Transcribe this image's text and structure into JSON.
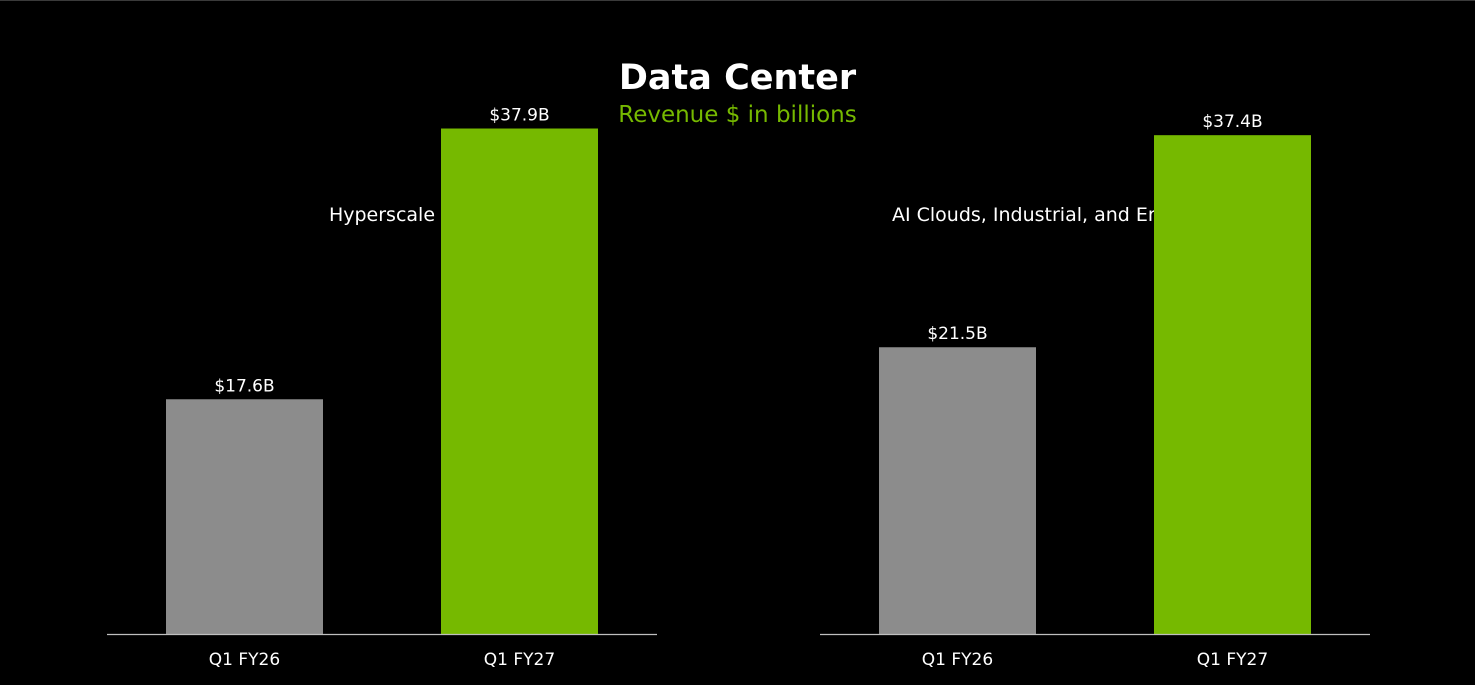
{
  "title": "Data Center",
  "subtitle": "Revenue $ in billions",
  "colors": {
    "background": "#000000",
    "title": "#ffffff",
    "subtitle": "#76b900",
    "prior_bar": "#8c8c8c",
    "current_bar": "#76b900",
    "axis": "#bfbfbf"
  },
  "chart_data": [
    {
      "type": "bar",
      "title": "Hyperscale",
      "categories": [
        "Q1 FY26",
        "Q1 FY27"
      ],
      "values": [
        17.6,
        37.9
      ],
      "data_labels": [
        "$17.6B",
        "$37.9B"
      ],
      "bar_colors": [
        "#8c8c8c",
        "#76b900"
      ],
      "xlabel": "",
      "ylabel": "",
      "ylim": [
        0,
        40
      ],
      "grid": false,
      "legend": "none"
    },
    {
      "type": "bar",
      "title": "AI Clouds, Industrial, and Enterprise (ACIE)",
      "categories": [
        "Q1 FY26",
        "Q1 FY27"
      ],
      "values": [
        21.5,
        37.4
      ],
      "data_labels": [
        "$21.5B",
        "$37.4B"
      ],
      "bar_colors": [
        "#8c8c8c",
        "#76b900"
      ],
      "xlabel": "",
      "ylabel": "",
      "ylim": [
        0,
        40
      ],
      "grid": false,
      "legend": "none"
    }
  ]
}
